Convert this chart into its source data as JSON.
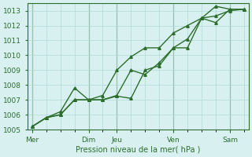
{
  "xlabel": "Pression niveau de la mer( hPa )",
  "ylabel": "",
  "background_color": "#d8f0f0",
  "grid_color": "#b0d8d8",
  "line_color": "#2d6e2d",
  "ylim": [
    1005,
    1013.5
  ],
  "yticks": [
    1005,
    1006,
    1007,
    1008,
    1009,
    1010,
    1011,
    1012,
    1013
  ],
  "day_labels": [
    "Mer",
    "Dim",
    "Jeu",
    "Ven",
    "Sam"
  ],
  "day_positions": [
    0,
    12,
    18,
    30,
    42
  ],
  "series1_x": [
    0,
    3,
    6,
    9,
    12,
    15,
    18,
    21,
    24,
    27,
    30,
    33,
    36,
    39,
    42,
    45
  ],
  "series1_y": [
    1005.2,
    1005.8,
    1006.2,
    1007.8,
    1007.0,
    1007.0,
    1007.25,
    1007.1,
    1009.0,
    1009.3,
    1010.5,
    1010.5,
    1012.5,
    1012.2,
    1013.1,
    1013.1
  ],
  "series2_x": [
    0,
    3,
    6,
    9,
    12,
    15,
    18,
    21,
    24,
    27,
    30,
    33,
    36,
    39,
    42,
    45
  ],
  "series2_y": [
    1005.2,
    1005.8,
    1006.0,
    1007.0,
    1007.0,
    1007.0,
    1007.3,
    1009.0,
    1008.7,
    1009.5,
    1010.5,
    1011.1,
    1012.5,
    1012.65,
    1013.0,
    1013.1
  ],
  "series3_x": [
    0,
    3,
    6,
    9,
    12,
    15,
    18,
    21,
    24,
    27,
    30,
    33,
    36,
    39,
    42,
    45
  ],
  "series3_y": [
    1005.2,
    1005.8,
    1006.0,
    1007.0,
    1007.0,
    1007.3,
    1009.0,
    1009.9,
    1010.5,
    1010.5,
    1011.5,
    1012.0,
    1012.5,
    1013.3,
    1013.1,
    1013.1
  ]
}
